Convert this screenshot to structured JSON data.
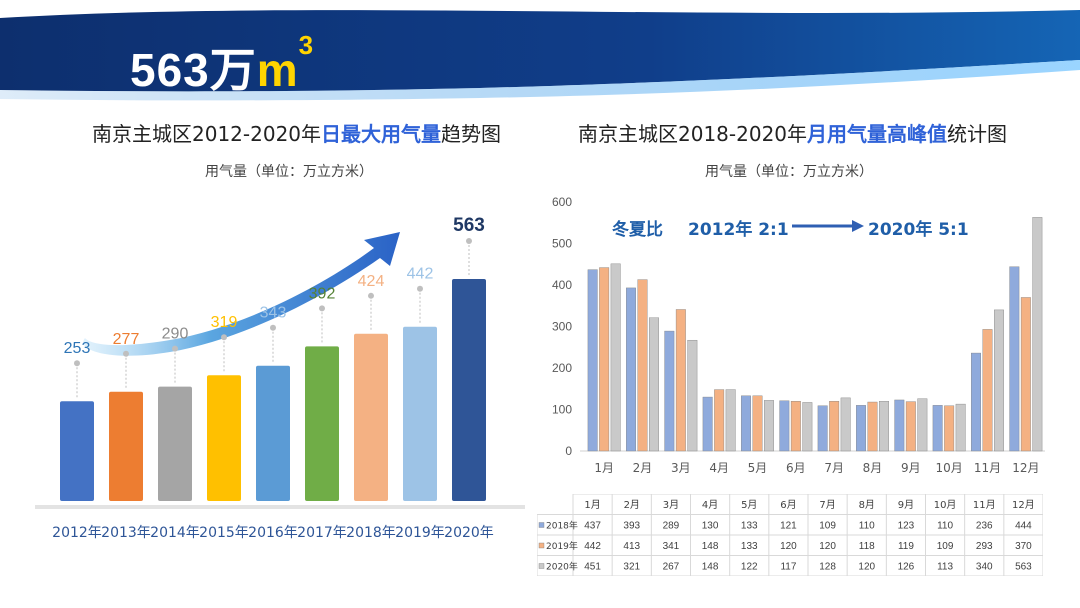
{
  "headline": {
    "value": "563万",
    "unit": "m",
    "sup": "3"
  },
  "left_chart": {
    "title_pre": "南京主城区2012-2020年",
    "title_hl": "日最大用气量",
    "title_post": "趋势图",
    "subtitle": "用气量（单位：万立方米）"
  },
  "right_chart": {
    "title_pre": "南京主城区2018-2020年",
    "title_hl": "月用气量高峰值",
    "title_post": "统计图",
    "subtitle": "用气量（单位：万立方米）",
    "annotation": {
      "label": "冬夏比",
      "from": "2012年 2:1",
      "to": "2020年 5:1"
    }
  },
  "chart_data": [
    {
      "type": "bar",
      "title": "南京主城区2012-2020年日最大用气量趋势图",
      "ylabel": "用气量（单位：万立方米）",
      "categories": [
        "2012年",
        "2013年",
        "2014年",
        "2015年",
        "2016年",
        "2017年",
        "2018年",
        "2019年",
        "2020年"
      ],
      "values": [
        253,
        277,
        290,
        319,
        343,
        392,
        424,
        442,
        563
      ],
      "colors": [
        "#4472c4",
        "#ed7d31",
        "#a5a5a5",
        "#ffc000",
        "#5b9bd5",
        "#70ad47",
        "#f4b183",
        "#9dc3e6",
        "#2f5597"
      ],
      "label_colors": [
        "#2e75b6",
        "#ed7d31",
        "#8c8c8c",
        "#ffc000",
        "#9dc3e6",
        "#548235",
        "#f4b183",
        "#9dc3e6",
        "#1f3864"
      ],
      "ylim": [
        0,
        563
      ]
    },
    {
      "type": "bar",
      "title": "南京主城区2018-2020年月用气量高峰值统计图",
      "ylabel": "用气量（单位：万立方米）",
      "categories": [
        "1月",
        "2月",
        "3月",
        "4月",
        "5月",
        "6月",
        "7月",
        "8月",
        "9月",
        "10月",
        "11月",
        "12月"
      ],
      "series": [
        {
          "name": "2018年",
          "values": [
            437,
            393,
            289,
            130,
            133,
            121,
            109,
            110,
            123,
            110,
            236,
            444
          ],
          "color": "#8faadc"
        },
        {
          "name": "2019年",
          "values": [
            442,
            413,
            341,
            148,
            133,
            120,
            120,
            118,
            119,
            109,
            293,
            370
          ],
          "color": "#f4b183"
        },
        {
          "name": "2020年",
          "values": [
            451,
            321,
            267,
            148,
            122,
            117,
            128,
            120,
            126,
            113,
            340,
            563
          ],
          "color": "#c9c9c9"
        }
      ],
      "ylim": [
        0,
        600
      ],
      "yticks": [
        0,
        100,
        200,
        300,
        400,
        500,
        600
      ],
      "grid": false,
      "table": true
    }
  ]
}
